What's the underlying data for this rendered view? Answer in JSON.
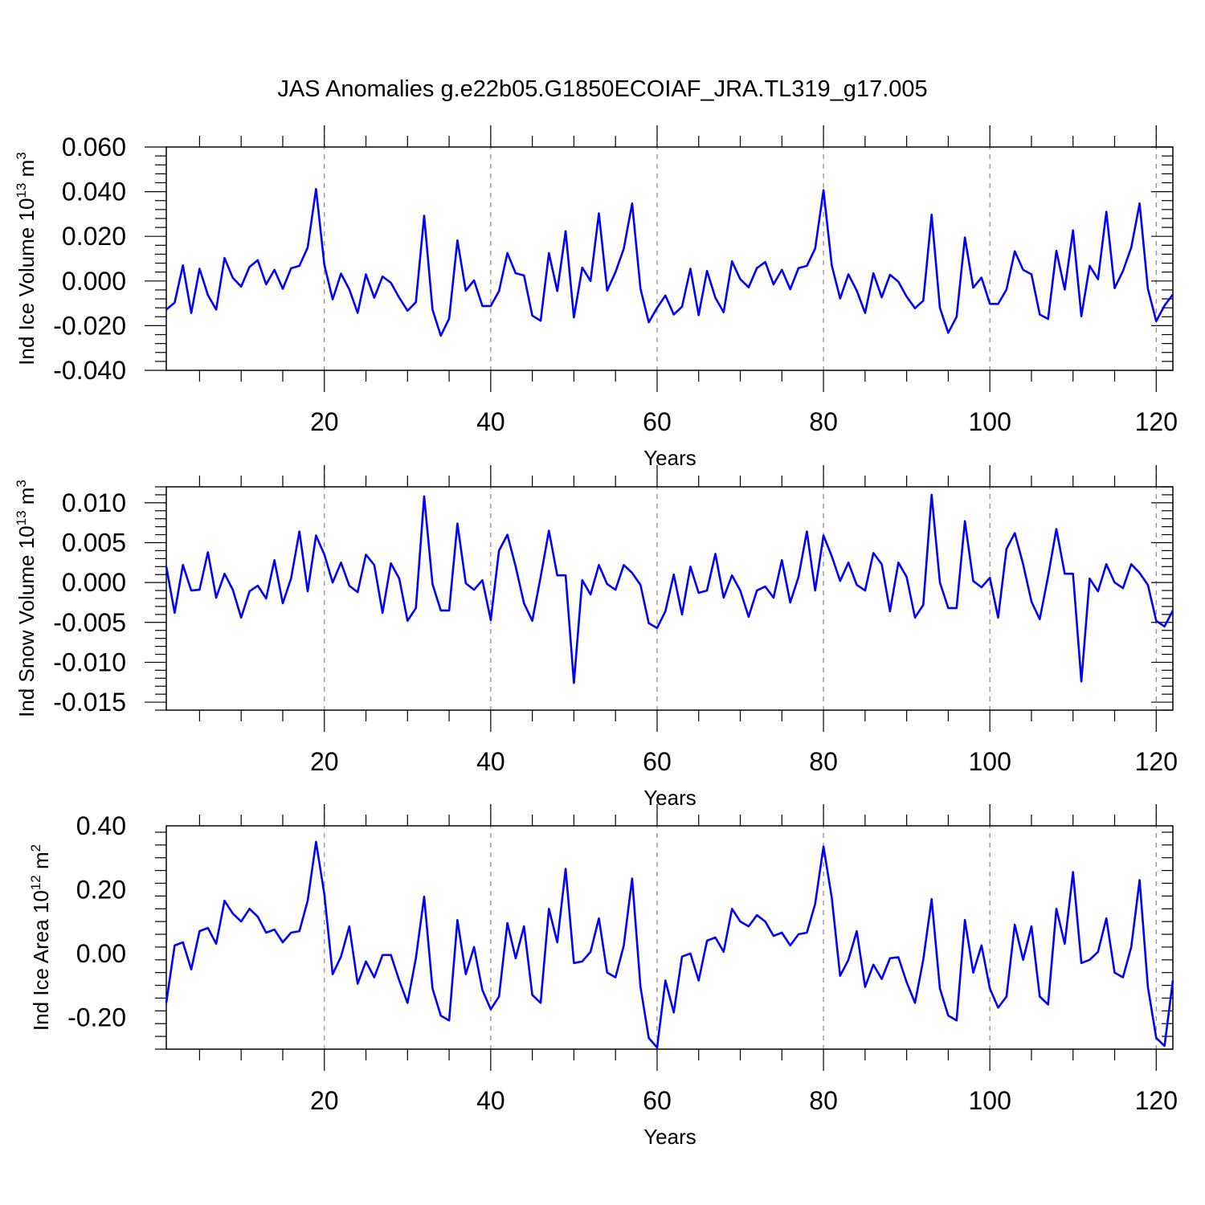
{
  "title": "JAS Anomalies g.e22b05.G1850ECOIAF_JRA.TL319_g17.005",
  "colors": {
    "line": "#0000ff",
    "grid": "#888888",
    "axis": "#000000"
  },
  "chart_data": [
    {
      "type": "line",
      "ylabel_main": "Ind Ice Volume 10",
      "ylabel_exp": "13",
      "ylabel_unit": " m",
      "ylabel_unit_exp": "3",
      "xlabel": "Years",
      "xlim": [
        1,
        122
      ],
      "ylim": [
        -0.04,
        0.06
      ],
      "xticks": [
        20,
        40,
        60,
        80,
        100,
        120
      ],
      "xtick_labels": [
        "20",
        "40",
        "60",
        "80",
        "100",
        "120"
      ],
      "yticks": [
        -0.04,
        -0.02,
        0.0,
        0.02,
        0.04,
        0.06
      ],
      "ytick_labels": [
        "-0.040",
        "-0.020",
        "0.000",
        "0.020",
        "0.040",
        "0.060"
      ],
      "grid_x": [
        20,
        40,
        60,
        80,
        100,
        120
      ],
      "values": [
        -0.0128,
        -0.0097,
        0.007,
        -0.0143,
        0.0055,
        -0.0063,
        -0.0128,
        0.0103,
        0.0014,
        -0.0025,
        0.0063,
        0.0093,
        -0.0015,
        0.005,
        -0.0035,
        0.0057,
        0.0068,
        0.015,
        0.0412,
        0.0072,
        -0.0082,
        0.0033,
        -0.0037,
        -0.0143,
        0.003,
        -0.0075,
        0.002,
        -0.0008,
        -0.0075,
        -0.0133,
        -0.0095,
        0.0292,
        -0.0128,
        -0.0245,
        -0.0168,
        0.0182,
        -0.0043,
        0.0003,
        -0.0112,
        -0.0112,
        -0.0045,
        0.0125,
        0.0035,
        0.0025,
        -0.0155,
        -0.0178,
        0.0125,
        -0.0045,
        0.0223,
        -0.0163,
        0.006,
        0.0,
        0.0303,
        -0.0043,
        0.004,
        0.0145,
        0.0347,
        -0.0035,
        -0.0185,
        -0.012,
        -0.0065,
        -0.015,
        -0.0115,
        0.0055,
        -0.0153,
        0.0045,
        -0.0075,
        -0.014,
        0.0088,
        0.0008,
        -0.0028,
        0.0058,
        0.0085,
        -0.0015,
        0.005,
        -0.0037,
        0.0058,
        0.0068,
        0.0145,
        0.0407,
        0.007,
        -0.0078,
        0.003,
        -0.0043,
        -0.0143,
        0.0035,
        -0.0073,
        0.0028,
        -0.0003,
        -0.007,
        -0.0122,
        -0.0088,
        0.0297,
        -0.012,
        -0.0232,
        -0.016,
        0.0195,
        -0.003,
        0.0015,
        -0.0102,
        -0.0103,
        -0.0038,
        0.0133,
        0.005,
        0.003,
        -0.015,
        -0.017,
        0.0135,
        -0.0038,
        0.0227,
        -0.0158,
        0.0068,
        0.0008,
        0.031,
        -0.0032,
        0.0045,
        0.015,
        0.0347,
        -0.0035,
        -0.018,
        -0.011,
        -0.006
      ]
    },
    {
      "type": "line",
      "ylabel_main": "Ind Snow Volume 10",
      "ylabel_exp": "13",
      "ylabel_unit": " m",
      "ylabel_unit_exp": "3",
      "xlabel": "Years",
      "xlim": [
        1,
        122
      ],
      "ylim": [
        -0.016,
        0.012
      ],
      "xticks": [
        20,
        40,
        60,
        80,
        100,
        120
      ],
      "xtick_labels": [
        "20",
        "40",
        "60",
        "80",
        "100",
        "120"
      ],
      "yticks": [
        -0.015,
        -0.01,
        -0.005,
        0.0,
        0.005,
        0.01
      ],
      "ytick_labels": [
        "-0.015",
        "-0.010",
        "-0.005",
        "0.000",
        "0.005",
        "0.010"
      ],
      "grid_x": [
        20,
        40,
        60,
        80,
        100,
        120
      ],
      "values": [
        0.002,
        -0.0038,
        0.0022,
        -0.001,
        -0.0009,
        0.0038,
        -0.0019,
        0.0011,
        -0.0009,
        -0.0044,
        -0.0011,
        -0.0004,
        -0.002,
        0.0028,
        -0.0026,
        0.0005,
        0.0064,
        -0.0011,
        0.0059,
        0.0035,
        0.0,
        0.0025,
        -0.0004,
        -0.0012,
        0.0035,
        0.0022,
        -0.0038,
        0.0024,
        0.0005,
        -0.0048,
        -0.0032,
        0.0108,
        -0.0002,
        -0.0035,
        -0.0035,
        0.0074,
        -0.0001,
        -0.0009,
        0.0003,
        -0.0047,
        0.004,
        0.006,
        0.002,
        -0.0026,
        -0.0048,
        0.0007,
        0.0065,
        0.0009,
        0.0009,
        -0.0126,
        0.0003,
        -0.0015,
        0.0022,
        -0.0002,
        -0.0009,
        0.0022,
        0.0012,
        -0.0003,
        -0.0051,
        -0.0057,
        -0.0036,
        0.001,
        -0.004,
        0.002,
        -0.0013,
        -0.001,
        0.0036,
        -0.0019,
        0.0009,
        -0.001,
        -0.0043,
        -0.001,
        -0.0005,
        -0.0019,
        0.0028,
        -0.0025,
        0.0007,
        0.0064,
        -0.001,
        0.0059,
        0.0033,
        0.0002,
        0.0025,
        -0.0003,
        -0.001,
        0.0037,
        0.0023,
        -0.0036,
        0.0025,
        0.0007,
        -0.0044,
        -0.0028,
        0.011,
        0.0,
        -0.0032,
        -0.0032,
        0.0077,
        0.0002,
        -0.0006,
        0.0006,
        -0.0044,
        0.0042,
        0.0062,
        0.0023,
        -0.0024,
        -0.0046,
        0.0008,
        0.0067,
        0.0011,
        0.0011,
        -0.0124,
        0.0005,
        -0.0011,
        0.0023,
        0.0,
        -0.0007,
        0.0023,
        0.0012,
        -0.0003,
        -0.0048,
        -0.0055,
        -0.0035
      ]
    },
    {
      "type": "line",
      "ylabel_main": "Ind Ice Area 10",
      "ylabel_exp": "12",
      "ylabel_unit": " m",
      "ylabel_unit_exp": "2",
      "xlabel": "Years",
      "xlim": [
        1,
        122
      ],
      "ylim": [
        -0.3,
        0.4
      ],
      "xticks": [
        20,
        40,
        60,
        80,
        100,
        120
      ],
      "xtick_labels": [
        "20",
        "40",
        "60",
        "80",
        "100",
        "120"
      ],
      "yticks": [
        -0.2,
        0.0,
        0.2,
        0.4
      ],
      "ytick_labels": [
        "-0.20",
        "0.00",
        "0.20",
        "0.40"
      ],
      "grid_x": [
        20,
        40,
        60,
        80,
        100,
        120
      ],
      "values": [
        -0.155,
        0.025,
        0.035,
        -0.05,
        0.07,
        0.08,
        0.03,
        0.165,
        0.125,
        0.1,
        0.14,
        0.115,
        0.065,
        0.075,
        0.035,
        0.065,
        0.07,
        0.165,
        0.35,
        0.185,
        -0.065,
        -0.01,
        0.085,
        -0.095,
        -0.025,
        -0.075,
        -0.005,
        -0.005,
        -0.085,
        -0.155,
        -0.015,
        0.178,
        -0.11,
        -0.195,
        -0.21,
        0.105,
        -0.065,
        0.02,
        -0.115,
        -0.175,
        -0.135,
        0.095,
        -0.015,
        0.085,
        -0.13,
        -0.155,
        0.14,
        0.035,
        0.265,
        -0.03,
        -0.025,
        0.005,
        0.11,
        -0.06,
        -0.075,
        0.025,
        0.235,
        -0.105,
        -0.265,
        -0.295,
        -0.085,
        -0.185,
        -0.01,
        0.0,
        -0.085,
        0.04,
        0.05,
        0.005,
        0.14,
        0.1,
        0.085,
        0.12,
        0.1,
        0.055,
        0.065,
        0.025,
        0.06,
        0.065,
        0.155,
        0.335,
        0.175,
        -0.07,
        -0.02,
        0.07,
        -0.105,
        -0.035,
        -0.08,
        -0.015,
        -0.012,
        -0.09,
        -0.155,
        -0.02,
        0.17,
        -0.11,
        -0.195,
        -0.21,
        0.105,
        -0.06,
        0.025,
        -0.11,
        -0.17,
        -0.135,
        0.09,
        -0.02,
        0.085,
        -0.135,
        -0.16,
        0.14,
        0.03,
        0.255,
        -0.03,
        -0.02,
        0.005,
        0.11,
        -0.06,
        -0.075,
        0.02,
        0.23,
        -0.105,
        -0.265,
        -0.29,
        -0.085
      ]
    }
  ]
}
